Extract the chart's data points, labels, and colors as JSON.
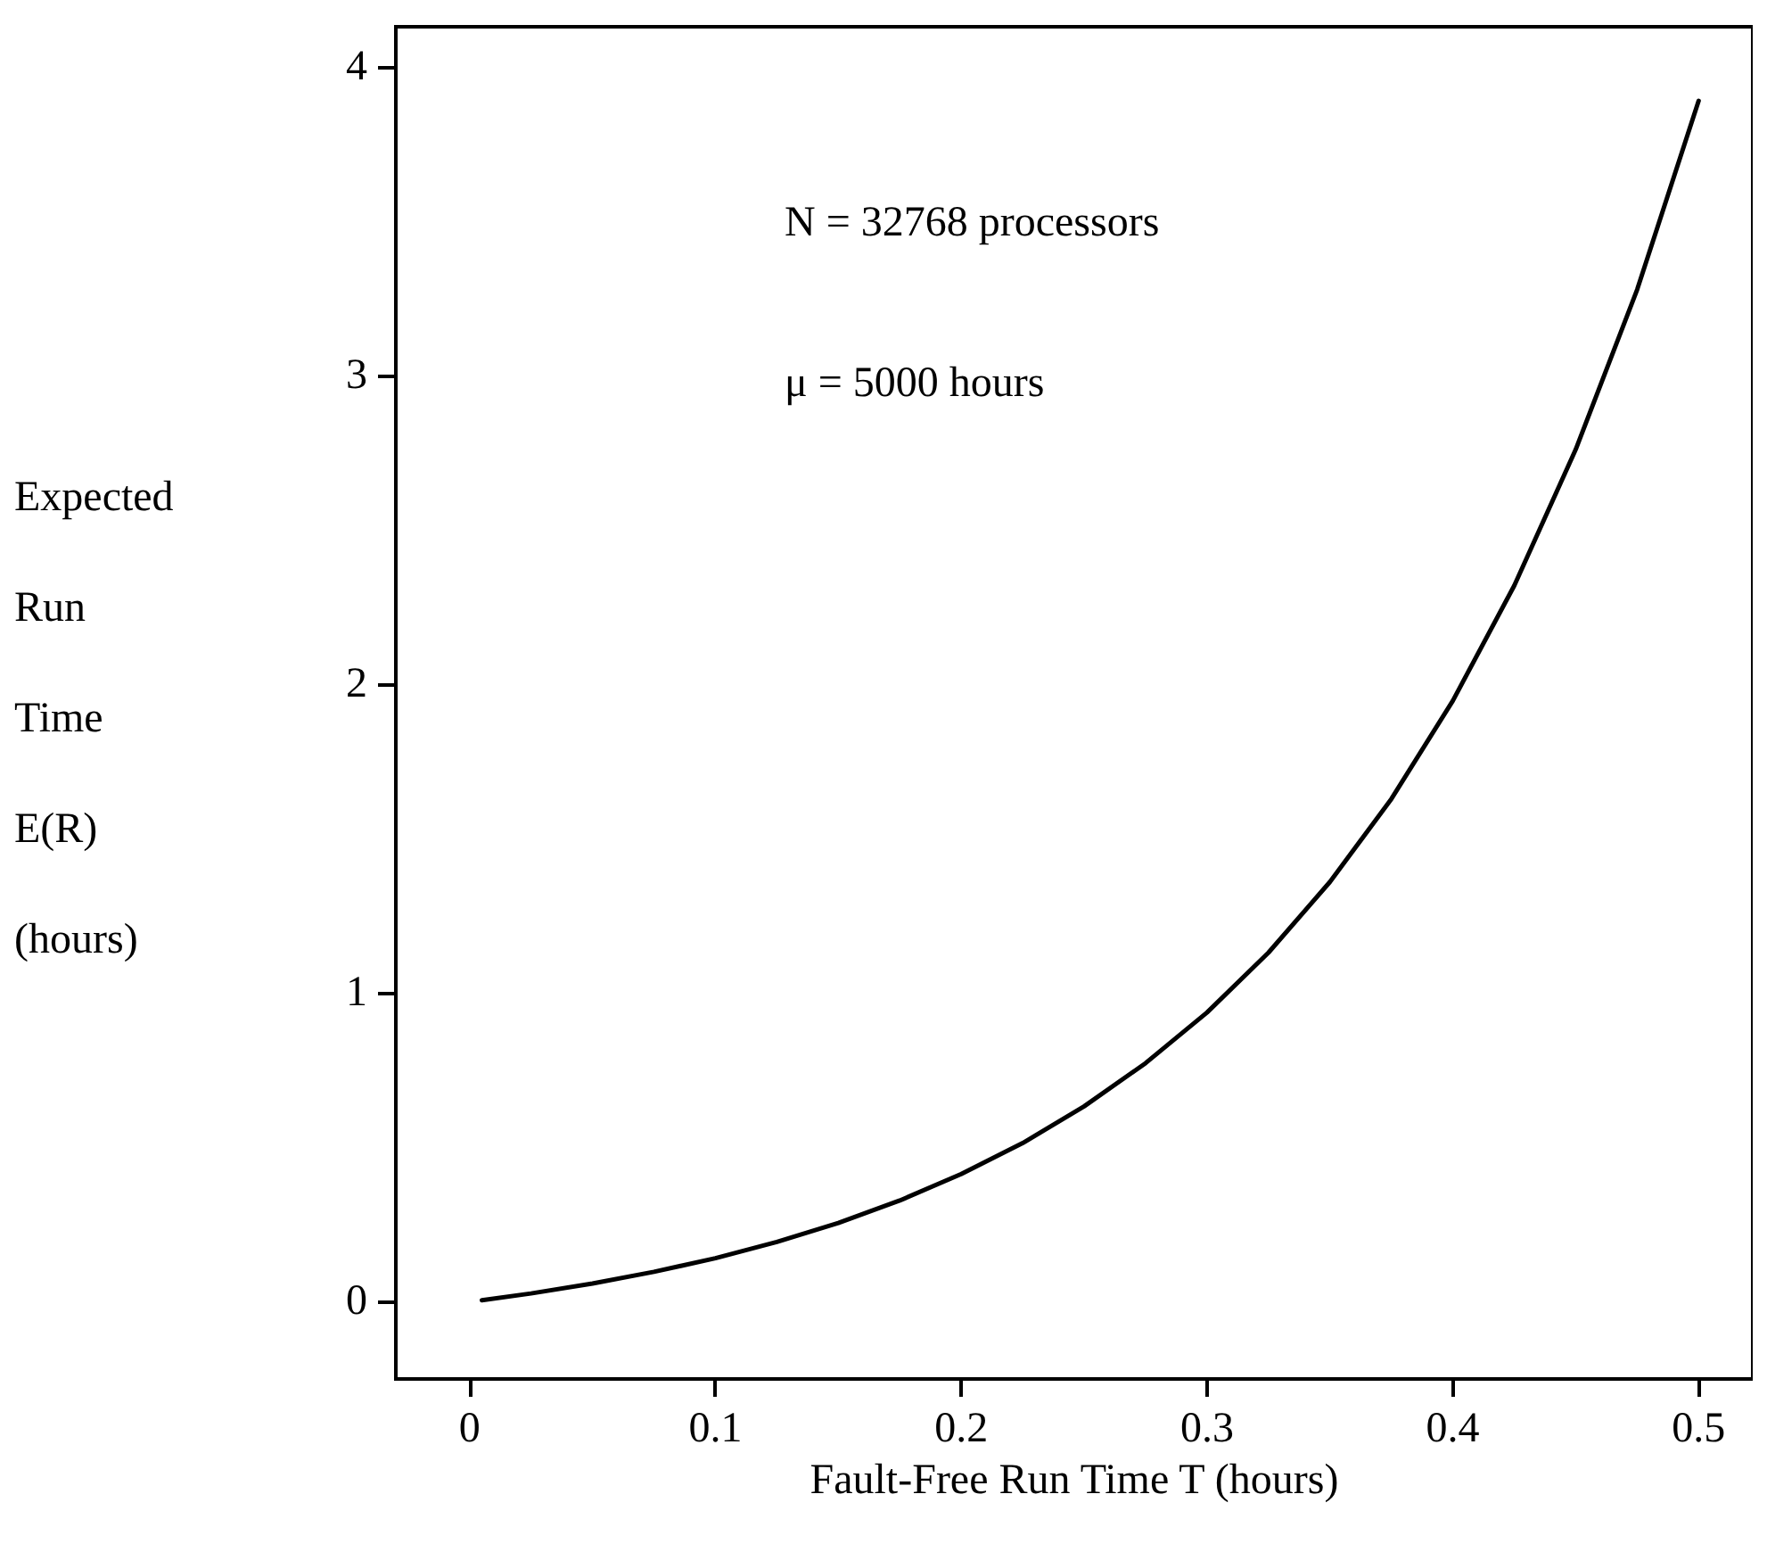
{
  "chart_data": {
    "type": "line",
    "xlabel": "Fault-Free Run Time T (hours)",
    "ylabel": "Expected Run Time E(R) (hours)",
    "annotations": [
      "N = 32768 processors",
      "μ = 5000 hours"
    ],
    "series": [
      {
        "color": "#000000",
        "x": [
          0.005,
          0.025,
          0.05,
          0.075,
          0.1,
          0.125,
          0.15,
          0.175,
          0.2,
          0.225,
          0.25,
          0.275,
          0.3,
          0.325,
          0.35,
          0.375,
          0.4,
          0.425,
          0.45,
          0.475,
          0.5
        ],
        "values": [
          0.005,
          0.027,
          0.059,
          0.097,
          0.141,
          0.194,
          0.255,
          0.328,
          0.414,
          0.514,
          0.633,
          0.773,
          0.937,
          1.131,
          1.36,
          1.629,
          1.947,
          2.32,
          2.761,
          3.279,
          3.89
        ]
      }
    ],
    "xlim": [
      -0.03,
      0.522
    ],
    "ylim": [
      -0.25,
      4.13
    ],
    "xticks": [
      0,
      0.1,
      0.2,
      0.3,
      0.4,
      0.5
    ],
    "yticks": [
      0,
      1,
      2,
      3,
      4
    ],
    "grid": false,
    "marker": "none",
    "line_style": "solid"
  }
}
